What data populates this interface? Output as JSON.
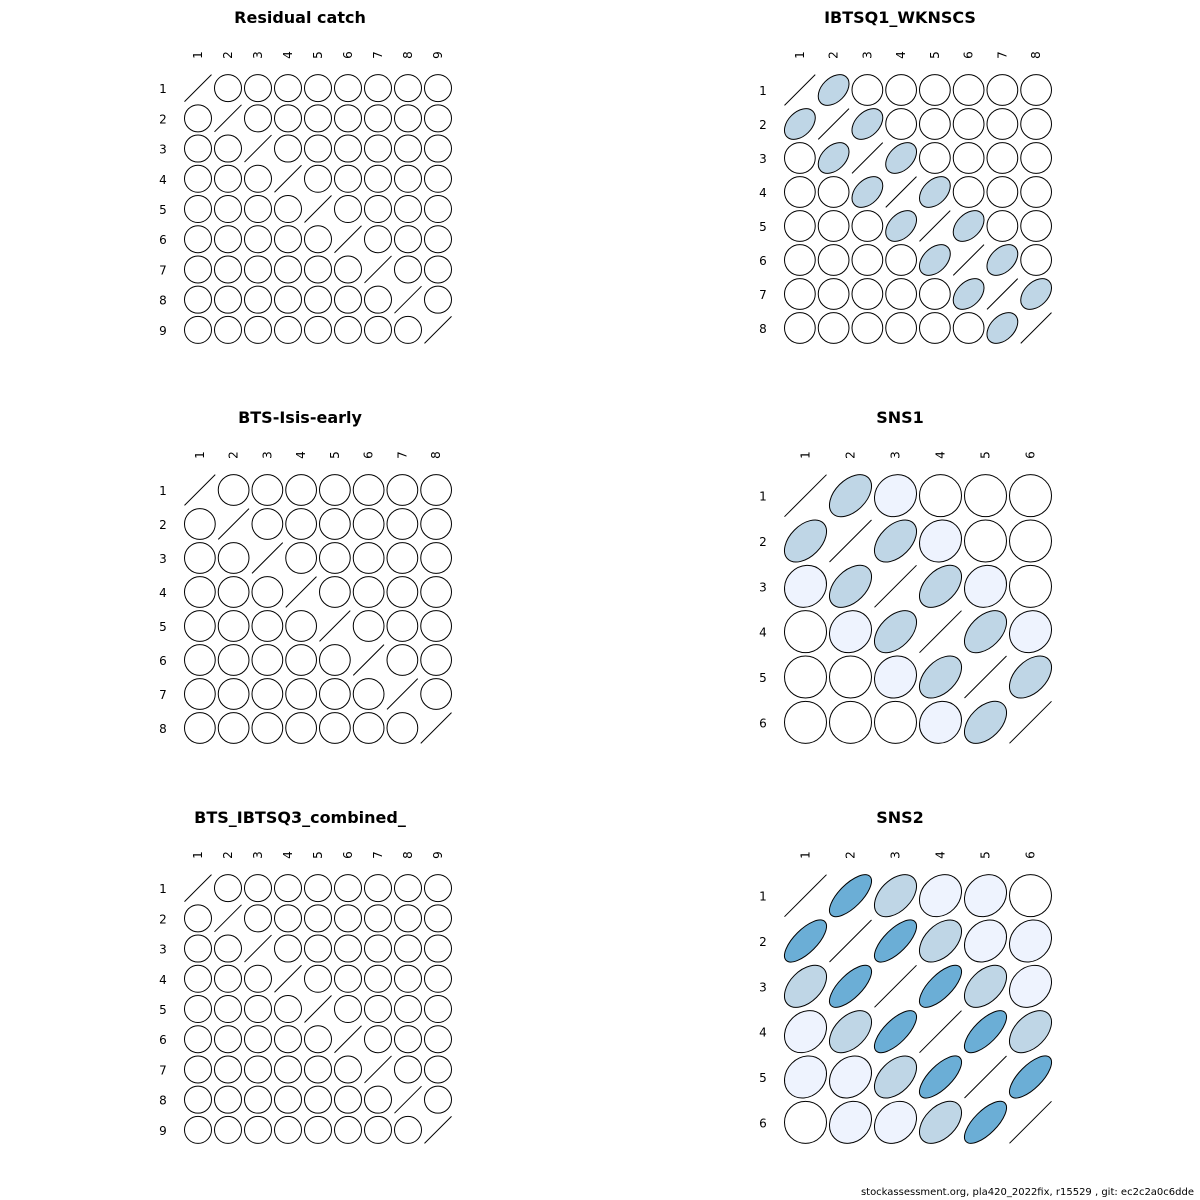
{
  "footer": "stockassessment.org, pla420_2022fix, r15529 , git: ec2c2a0c6dde",
  "colors": {
    "stroke": "#000000",
    "fill_low": "#EEF3FE",
    "fill_mid": "#BFD6E6",
    "fill_high": "#6BAED6"
  },
  "chart_data": [
    {
      "type": "heatmap",
      "title": "Residual catch",
      "labels": [
        "1",
        "2",
        "3",
        "4",
        "5",
        "6",
        "7",
        "8",
        "9"
      ],
      "correlation": [
        [
          1,
          0,
          0,
          0,
          0,
          0,
          0,
          0,
          0
        ],
        [
          0,
          1,
          0,
          0,
          0,
          0,
          0,
          0,
          0
        ],
        [
          0,
          0,
          1,
          0,
          0,
          0,
          0,
          0,
          0
        ],
        [
          0,
          0,
          0,
          1,
          0,
          0,
          0,
          0,
          0
        ],
        [
          0,
          0,
          0,
          0,
          1,
          0,
          0,
          0,
          0
        ],
        [
          0,
          0,
          0,
          0,
          0,
          1,
          0,
          0,
          0
        ],
        [
          0,
          0,
          0,
          0,
          0,
          0,
          1,
          0,
          0
        ],
        [
          0,
          0,
          0,
          0,
          0,
          0,
          0,
          1,
          0
        ],
        [
          0,
          0,
          0,
          0,
          0,
          0,
          0,
          0,
          1
        ]
      ]
    },
    {
      "type": "heatmap",
      "title": "IBTSQ1_WKNSCS",
      "labels": [
        "1",
        "2",
        "3",
        "4",
        "5",
        "6",
        "7",
        "8"
      ],
      "correlation": [
        [
          1,
          0.4,
          0,
          0,
          0,
          0,
          0,
          0
        ],
        [
          0.4,
          1,
          0.4,
          0,
          0,
          0,
          0,
          0
        ],
        [
          0,
          0.4,
          1,
          0.4,
          0,
          0,
          0,
          0
        ],
        [
          0,
          0,
          0.4,
          1,
          0.4,
          0,
          0,
          0
        ],
        [
          0,
          0,
          0,
          0.4,
          1,
          0.4,
          0,
          0
        ],
        [
          0,
          0,
          0,
          0,
          0.4,
          1,
          0.4,
          0
        ],
        [
          0,
          0,
          0,
          0,
          0,
          0.4,
          1,
          0.4
        ],
        [
          0,
          0,
          0,
          0,
          0,
          0,
          0.4,
          1
        ]
      ]
    },
    {
      "type": "heatmap",
      "title": "BTS-Isis-early",
      "labels": [
        "1",
        "2",
        "3",
        "4",
        "5",
        "6",
        "7",
        "8"
      ],
      "correlation": [
        [
          1,
          0,
          0,
          0,
          0,
          0,
          0,
          0
        ],
        [
          0,
          1,
          0,
          0,
          0,
          0,
          0,
          0
        ],
        [
          0,
          0,
          1,
          0,
          0,
          0,
          0,
          0
        ],
        [
          0,
          0,
          0,
          1,
          0,
          0,
          0,
          0
        ],
        [
          0,
          0,
          0,
          0,
          1,
          0,
          0,
          0
        ],
        [
          0,
          0,
          0,
          0,
          0,
          1,
          0,
          0
        ],
        [
          0,
          0,
          0,
          0,
          0,
          0,
          1,
          0
        ],
        [
          0,
          0,
          0,
          0,
          0,
          0,
          0,
          1
        ]
      ]
    },
    {
      "type": "heatmap",
      "title": "SNS1",
      "labels": [
        "1",
        "2",
        "3",
        "4",
        "5",
        "6"
      ],
      "correlation": [
        [
          1,
          0.45,
          0.1,
          0,
          0,
          0
        ],
        [
          0.45,
          1,
          0.45,
          0.1,
          0,
          0
        ],
        [
          0.1,
          0.45,
          1,
          0.45,
          0.1,
          0
        ],
        [
          0,
          0.1,
          0.45,
          1,
          0.45,
          0.1
        ],
        [
          0,
          0,
          0.1,
          0.45,
          1,
          0.45
        ],
        [
          0,
          0,
          0,
          0.1,
          0.45,
          1
        ]
      ]
    },
    {
      "type": "heatmap",
      "title": "BTS_IBTSQ3_combined_",
      "labels": [
        "1",
        "2",
        "3",
        "4",
        "5",
        "6",
        "7",
        "8",
        "9"
      ],
      "correlation": [
        [
          1,
          0,
          0,
          0,
          0,
          0,
          0,
          0,
          0
        ],
        [
          0,
          1,
          0,
          0,
          0,
          0,
          0,
          0,
          0
        ],
        [
          0,
          0,
          1,
          0,
          0,
          0,
          0,
          0,
          0
        ],
        [
          0,
          0,
          0,
          1,
          0,
          0,
          0,
          0,
          0
        ],
        [
          0,
          0,
          0,
          0,
          1,
          0,
          0,
          0,
          0
        ],
        [
          0,
          0,
          0,
          0,
          0,
          1,
          0,
          0,
          0
        ],
        [
          0,
          0,
          0,
          0,
          0,
          0,
          1,
          0,
          0
        ],
        [
          0,
          0,
          0,
          0,
          0,
          0,
          0,
          1,
          0
        ],
        [
          0,
          0,
          0,
          0,
          0,
          0,
          0,
          0,
          1
        ]
      ]
    },
    {
      "type": "heatmap",
      "title": "SNS2",
      "labels": [
        "1",
        "2",
        "3",
        "4",
        "5",
        "6"
      ],
      "correlation": [
        [
          1,
          0.7,
          0.45,
          0.2,
          0.15,
          0
        ],
        [
          0.7,
          1,
          0.7,
          0.45,
          0.2,
          0.15
        ],
        [
          0.45,
          0.7,
          1,
          0.7,
          0.45,
          0.2
        ],
        [
          0.2,
          0.45,
          0.7,
          1,
          0.7,
          0.45
        ],
        [
          0.15,
          0.2,
          0.45,
          0.7,
          1,
          0.7
        ],
        [
          0,
          0.15,
          0.2,
          0.45,
          0.7,
          1
        ]
      ]
    }
  ]
}
